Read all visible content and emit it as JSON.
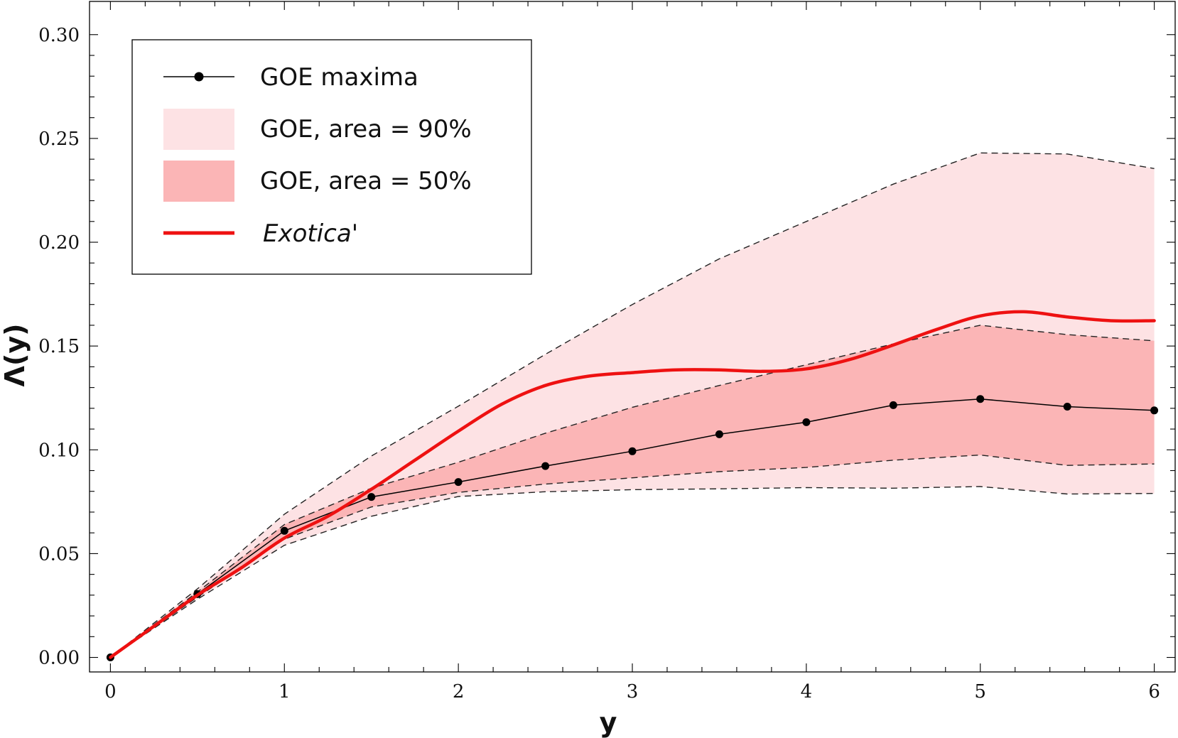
{
  "chart_data": {
    "type": "line",
    "xlabel": "y",
    "ylabel": "Λ(y)",
    "xlim": [
      -0.12,
      6.12
    ],
    "ylim": [
      -0.007,
      0.316
    ],
    "x_ticks": [
      0,
      1,
      2,
      3,
      4,
      5,
      6
    ],
    "x_tick_labels": [
      "0",
      "1",
      "2",
      "3",
      "4",
      "5",
      "6"
    ],
    "y_ticks": [
      0,
      0.05,
      0.1,
      0.15,
      0.2,
      0.25,
      0.3
    ],
    "y_tick_labels": [
      "0.00",
      "0.05",
      "0.10",
      "0.15",
      "0.20",
      "0.25",
      "0.30"
    ],
    "x": [
      0,
      0.5,
      1,
      1.5,
      2,
      2.5,
      3,
      3.5,
      4,
      4.5,
      5,
      5.5,
      6
    ],
    "series": [
      {
        "name": "GOE maxima",
        "kind": "line+markers",
        "values": [
          0,
          0.0305,
          0.061,
          0.0773,
          0.0845,
          0.0922,
          0.0993,
          0.1075,
          0.1133,
          0.1215,
          0.1245,
          0.1208,
          0.119
        ]
      },
      {
        "name": "GOE, area = 90%",
        "kind": "band",
        "lower": [
          0,
          0.028,
          0.054,
          0.068,
          0.0775,
          0.0798,
          0.0808,
          0.0812,
          0.0818,
          0.0815,
          0.0823,
          0.0787,
          0.079
        ],
        "upper": [
          0,
          0.033,
          0.069,
          0.097,
          0.121,
          0.146,
          0.17,
          0.192,
          0.21,
          0.228,
          0.243,
          0.2425,
          0.2355
        ]
      },
      {
        "name": "GOE, area = 50%",
        "kind": "band",
        "lower": [
          0,
          0.029,
          0.057,
          0.0725,
          0.0795,
          0.0835,
          0.0865,
          0.0895,
          0.0915,
          0.095,
          0.0975,
          0.0925,
          0.0932
        ],
        "upper": [
          0,
          0.0315,
          0.064,
          0.0815,
          0.094,
          0.108,
          0.1205,
          0.131,
          0.141,
          0.151,
          0.16,
          0.1555,
          0.1525
        ]
      },
      {
        "name": "Exotica'",
        "kind": "line",
        "x": [
          0,
          0.25,
          0.5,
          0.75,
          1,
          1.25,
          1.5,
          1.75,
          2,
          2.25,
          2.5,
          2.75,
          3,
          3.25,
          3.5,
          3.75,
          4,
          4.25,
          4.5,
          4.75,
          5,
          5.25,
          5.5,
          5.75,
          6
        ],
        "values": [
          0,
          0.015,
          0.03,
          0.043,
          0.0575,
          0.068,
          0.081,
          0.095,
          0.109,
          0.122,
          0.131,
          0.1355,
          0.1372,
          0.1385,
          0.1385,
          0.1378,
          0.139,
          0.1435,
          0.1505,
          0.158,
          0.1645,
          0.1665,
          0.164,
          0.1622,
          0.1622
        ]
      }
    ],
    "colors": {
      "band90": "#fde2e4",
      "band50": "#fbb5b6",
      "exotica": "#ee1111",
      "maxima": "#000000"
    },
    "legend": {
      "position": "top-left",
      "entries": [
        {
          "label": "GOE maxima"
        },
        {
          "label": "GOE, area = 90%"
        },
        {
          "label": "GOE, area = 50%"
        },
        {
          "label": "Exotica'"
        }
      ]
    }
  }
}
